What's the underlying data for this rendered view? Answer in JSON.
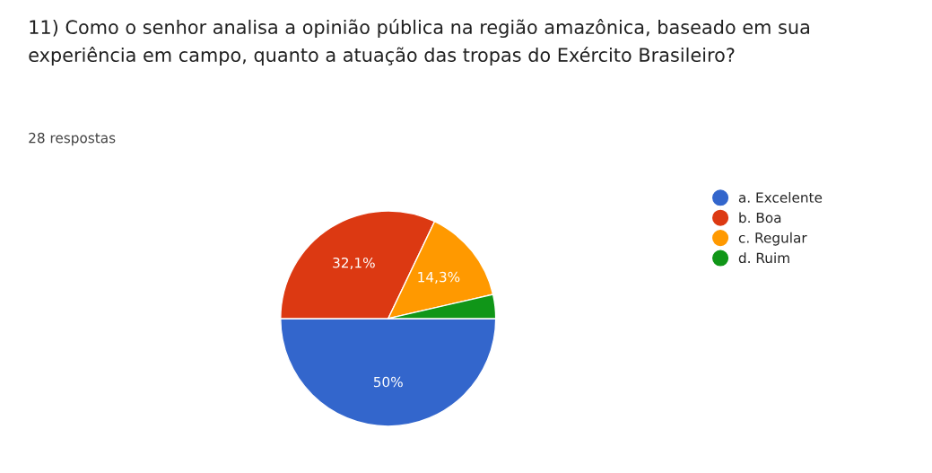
{
  "chart_data": {
    "type": "pie",
    "title": "11) Como o senhor analisa a opinião pública na região amazônica, baseado em sua\nexperiência em campo, quanto a atuação das tropas do Exército Brasileiro?",
    "subtitle": "28 respostas",
    "categories": [
      "a. Excelente",
      "b. Boa",
      "c. Regular",
      "d. Ruim"
    ],
    "values": [
      50,
      32.1,
      14.3,
      3.6
    ],
    "colors": [
      "#3366cc",
      "#dc3912",
      "#ff9900",
      "#109618"
    ],
    "value_labels": [
      "50%",
      "32,1%",
      "14,3%",
      null
    ],
    "legend": "right"
  }
}
